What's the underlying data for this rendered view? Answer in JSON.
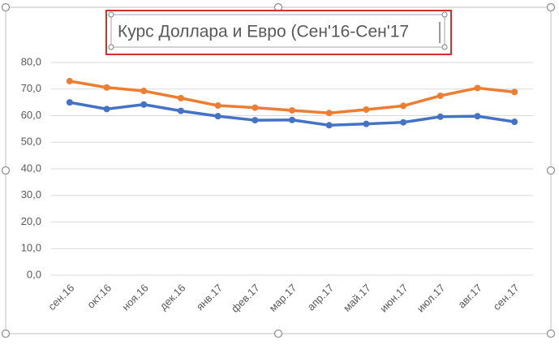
{
  "chart_data": {
    "type": "line",
    "title": "Курс Доллара и Евро (Сен'16-Сен'17",
    "categories": [
      "сен.16",
      "окт.16",
      "ноя.16",
      "дек.16",
      "янв.17",
      "фев.17",
      "мар.17",
      "апр.17",
      "май.17",
      "июн.17",
      "июл.17",
      "авг.17",
      "сен.17"
    ],
    "series": [
      {
        "color": "#4472c4",
        "values": [
          65.0,
          62.5,
          64.2,
          61.8,
          59.8,
          58.3,
          58.4,
          56.4,
          56.9,
          57.5,
          59.6,
          59.8,
          57.7
        ]
      },
      {
        "color": "#ed7d31",
        "values": [
          73.0,
          70.6,
          69.3,
          66.6,
          63.8,
          63.0,
          62.0,
          61.0,
          62.3,
          63.7,
          67.5,
          70.4,
          68.9
        ]
      }
    ],
    "ylim": [
      0,
      80
    ],
    "yticks": [
      {
        "value": 0,
        "label": "0,0"
      },
      {
        "value": 10,
        "label": "10,0"
      },
      {
        "value": 20,
        "label": "20,0"
      },
      {
        "value": 30,
        "label": "30,0"
      },
      {
        "value": 40,
        "label": "40,0"
      },
      {
        "value": 50,
        "label": "50,0"
      },
      {
        "value": 60,
        "label": "60,0"
      },
      {
        "value": 70,
        "label": "70,0"
      },
      {
        "value": 80,
        "label": "80,0"
      }
    ],
    "grid": true
  }
}
